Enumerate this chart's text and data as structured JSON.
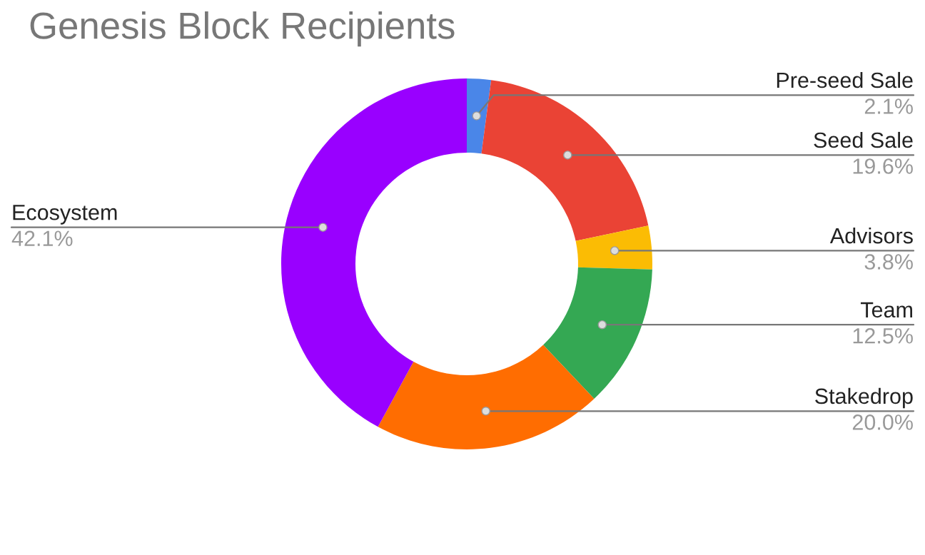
{
  "chart_data": {
    "type": "donut",
    "title": "Genesis Block Recipients",
    "categories": [
      "Pre-seed Sale",
      "Seed Sale",
      "Advisors",
      "Team",
      "Stakedrop",
      "Ecosystem"
    ],
    "values": [
      2.1,
      19.6,
      3.8,
      12.5,
      20.0,
      42.1
    ],
    "value_labels": [
      "2.1%",
      "19.6%",
      "3.8%",
      "12.5%",
      "20.0%",
      "42.1%"
    ],
    "colors": [
      "#4a86e8",
      "#ea4335",
      "#fbbc04",
      "#34a853",
      "#ff6d01",
      "#9900ff"
    ]
  }
}
